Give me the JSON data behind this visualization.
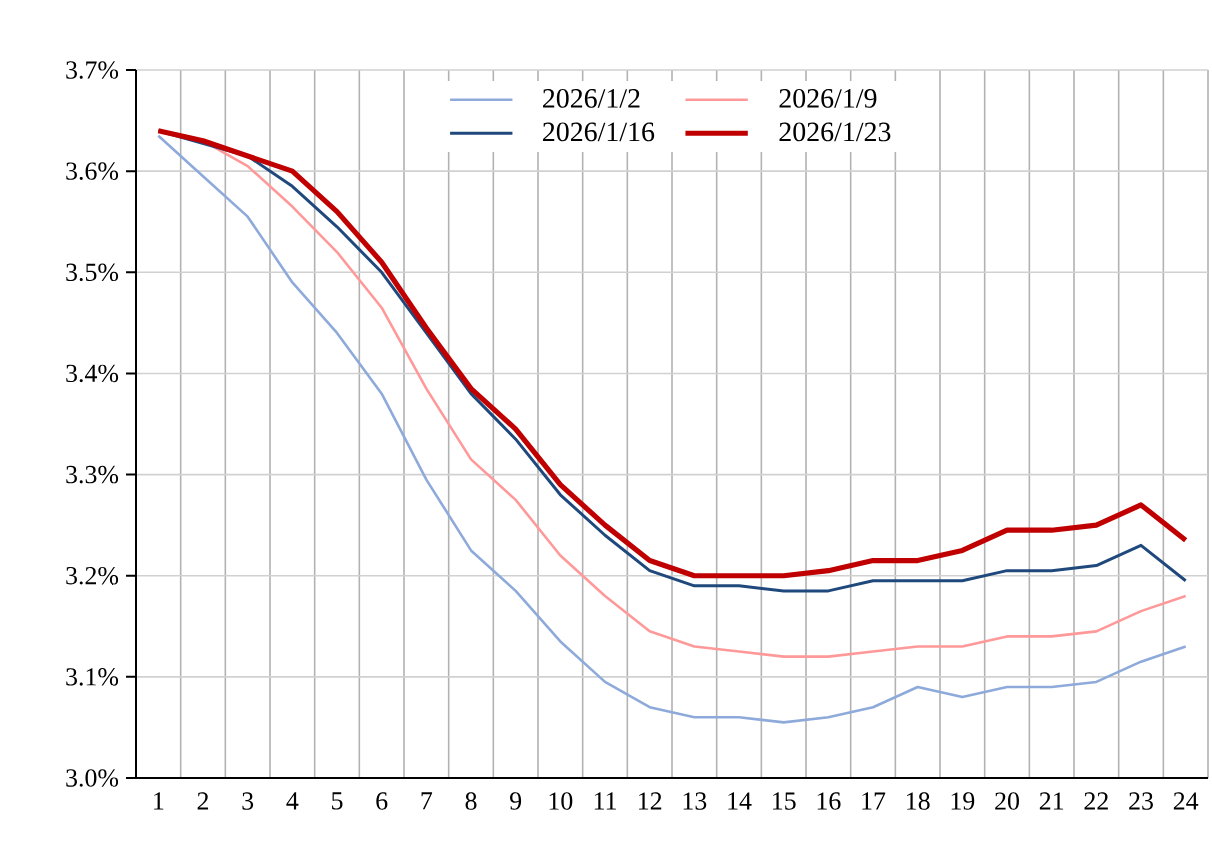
{
  "chart_data": {
    "type": "line",
    "categories": [
      "1",
      "2",
      "3",
      "4",
      "5",
      "6",
      "7",
      "8",
      "9",
      "10",
      "11",
      "12",
      "13",
      "14",
      "15",
      "16",
      "17",
      "18",
      "19",
      "20",
      "21",
      "22",
      "23",
      "24"
    ],
    "series": [
      {
        "name": "2026/1/2",
        "color": "#8eaadb",
        "values": [
          3.635,
          3.595,
          3.555,
          3.49,
          3.44,
          3.38,
          3.295,
          3.225,
          3.185,
          3.135,
          3.095,
          3.07,
          3.06,
          3.06,
          3.055,
          3.06,
          3.07,
          3.09,
          3.08,
          3.09,
          3.09,
          3.095,
          3.115,
          3.13
        ]
      },
      {
        "name": "2026/1/9",
        "color": "#ff9999",
        "values": [
          3.64,
          3.63,
          3.605,
          3.565,
          3.52,
          3.465,
          3.385,
          3.315,
          3.275,
          3.22,
          3.18,
          3.145,
          3.13,
          3.125,
          3.12,
          3.12,
          3.125,
          3.13,
          3.13,
          3.14,
          3.14,
          3.145,
          3.165,
          3.18
        ]
      },
      {
        "name": "2026/1/16",
        "color": "#1f497d",
        "values": [
          3.64,
          null,
          3.615,
          3.585,
          3.545,
          3.5,
          3.44,
          3.38,
          3.335,
          3.28,
          3.24,
          3.205,
          3.19,
          3.19,
          3.185,
          3.185,
          3.195,
          3.195,
          3.195,
          3.205,
          3.205,
          3.21,
          3.23,
          3.195
        ]
      },
      {
        "name": "2026/1/23",
        "color": "#c00000",
        "values": [
          3.64,
          3.63,
          3.615,
          3.6,
          3.56,
          3.51,
          3.445,
          3.385,
          3.345,
          3.29,
          3.25,
          3.215,
          3.2,
          3.2,
          3.2,
          3.205,
          3.215,
          3.215,
          3.225,
          3.245,
          3.245,
          3.25,
          3.27,
          3.235
        ]
      }
    ],
    "ylim": [
      3.0,
      3.7
    ],
    "yticks": [
      {
        "value": 3.0,
        "label": "3.0%"
      },
      {
        "value": 3.1,
        "label": "3.1%"
      },
      {
        "value": 3.2,
        "label": "3.2%"
      },
      {
        "value": 3.3,
        "label": "3.3%"
      },
      {
        "value": 3.4,
        "label": "3.4%"
      },
      {
        "value": 3.5,
        "label": "3.5%"
      },
      {
        "value": 3.6,
        "label": "3.6%"
      },
      {
        "value": 3.7,
        "label": "3.7%"
      }
    ],
    "grid": true,
    "legend": "top",
    "marker": "none",
    "line_style": "solid"
  }
}
